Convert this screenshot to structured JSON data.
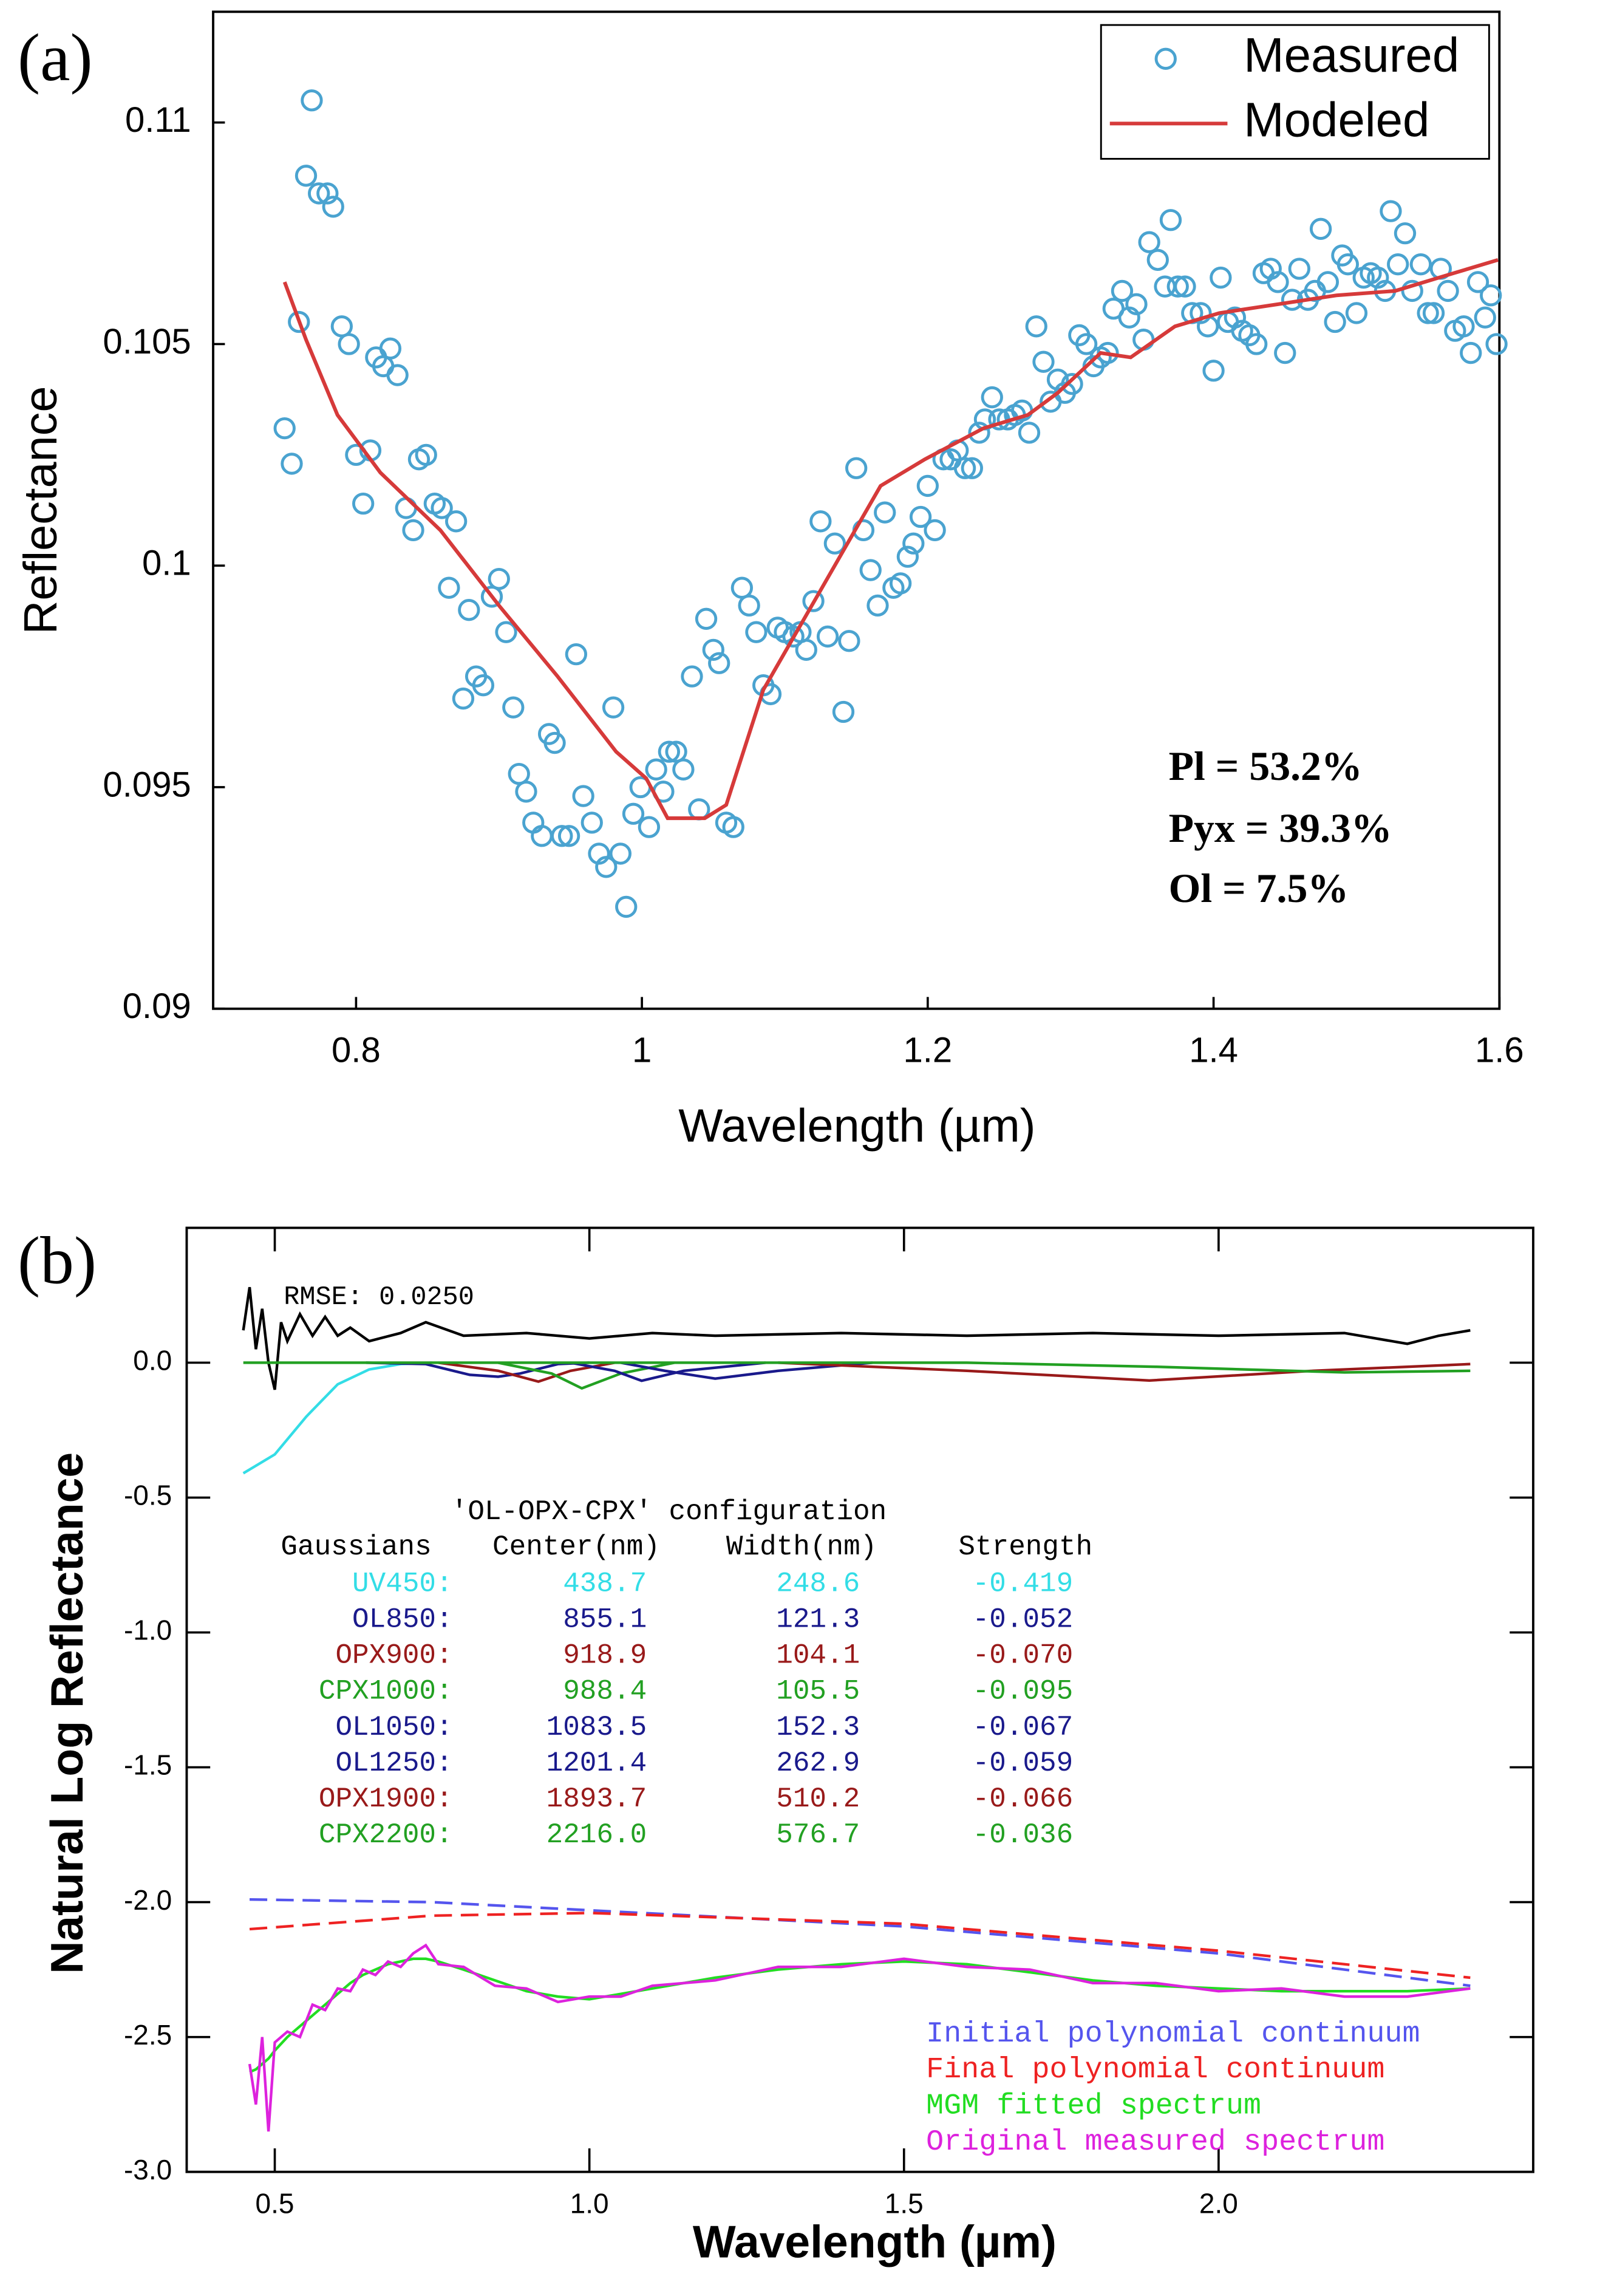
{
  "chart_data": [
    {
      "type": "scatter",
      "panel_label": "(a)",
      "x_label": "Wavelength (µm)",
      "y_label": "Reflectance",
      "annotations": [
        "Pl = 53.2%",
        "Pyx = 39.3%",
        "Ol = 7.5%"
      ],
      "xlim": [
        0.7,
        1.6
      ],
      "ylim": [
        0.09,
        0.1125
      ],
      "xticks": [
        0.8,
        1,
        1.2,
        1.4,
        1.6
      ],
      "yticks": [
        0.09,
        0.095,
        0.1,
        0.105,
        0.11
      ],
      "legend": "upper right",
      "series": [
        {
          "name": "Measured",
          "type": "scatter",
          "color": "#4aa3d0",
          "x": [
            0.75,
            0.755,
            0.76,
            0.765,
            0.769,
            0.774,
            0.78,
            0.784,
            0.79,
            0.795,
            0.8,
            0.805,
            0.81,
            0.814,
            0.819,
            0.824,
            0.829,
            0.835,
            0.84,
            0.844,
            0.849,
            0.855,
            0.86,
            0.865,
            0.87,
            0.875,
            0.879,
            0.884,
            0.889,
            0.895,
            0.9,
            0.905,
            0.91,
            0.914,
            0.919,
            0.924,
            0.93,
            0.935,
            0.939,
            0.944,
            0.949,
            0.954,
            0.959,
            0.965,
            0.97,
            0.975,
            0.98,
            0.985,
            0.989,
            0.994,
            0.999,
            1.005,
            1.01,
            1.015,
            1.019,
            1.024,
            1.029,
            1.035,
            1.04,
            1.045,
            1.05,
            1.054,
            1.059,
            1.064,
            1.07,
            1.075,
            1.08,
            1.085,
            1.09,
            1.095,
            1.1,
            1.106,
            1.111,
            1.115,
            1.12,
            1.125,
            1.13,
            1.135,
            1.141,
            1.145,
            1.15,
            1.155,
            1.16,
            1.165,
            1.17,
            1.176,
            1.181,
            1.186,
            1.19,
            1.195,
            1.2,
            1.205,
            1.211,
            1.216,
            1.221,
            1.226,
            1.231,
            1.236,
            1.24,
            1.245,
            1.25,
            1.256,
            1.261,
            1.266,
            1.271,
            1.276,
            1.281,
            1.286,
            1.291,
            1.296,
            1.301,
            1.306,
            1.311,
            1.316,
            1.321,
            1.326,
            1.33,
            1.336,
            1.341,
            1.346,
            1.351,
            1.355,
            1.361,
            1.366,
            1.37,
            1.375,
            1.38,
            1.385,
            1.391,
            1.396,
            1.4,
            1.405,
            1.41,
            1.415,
            1.42,
            1.425,
            1.43,
            1.435,
            1.44,
            1.445,
            1.45,
            1.455,
            1.46,
            1.466,
            1.471,
            1.475,
            1.48,
            1.485,
            1.49,
            1.494,
            1.5,
            1.505,
            1.51,
            1.515,
            1.52,
            1.524,
            1.529,
            1.534,
            1.539,
            1.545,
            1.55,
            1.554,
            1.559,
            1.564,
            1.569,
            1.575,
            1.58,
            1.585,
            1.59,
            1.594,
            1.598
          ],
          "values": [
            0.1031,
            0.1023,
            0.1055,
            0.1088,
            0.1105,
            0.1084,
            0.1084,
            0.1081,
            0.1054,
            0.105,
            0.1025,
            0.1014,
            0.1026,
            0.1047,
            0.1045,
            0.1049,
            0.1043,
            0.1013,
            0.1008,
            0.1024,
            0.1025,
            0.1014,
            0.1013,
            0.0995,
            0.101,
            0.097,
            0.099,
            0.0975,
            0.0973,
            0.0993,
            0.0997,
            0.0985,
            0.0968,
            0.0953,
            0.0949,
            0.0942,
            0.0939,
            0.0962,
            0.096,
            0.0939,
            0.0939,
            0.098,
            0.0948,
            0.0942,
            0.0935,
            0.0932,
            0.0968,
            0.0935,
            0.0923,
            0.0944,
            0.095,
            0.0941,
            0.0954,
            0.0949,
            0.0958,
            0.0958,
            0.0954,
            0.0975,
            0.0945,
            0.0988,
            0.0981,
            0.0978,
            0.0942,
            0.0941,
            0.0995,
            0.0991,
            0.0985,
            0.0973,
            0.0971,
            0.0986,
            0.0985,
            0.0984,
            0.0985,
            0.0981,
            0.0992,
            0.101,
            0.0984,
            0.1005,
            0.0967,
            0.0983,
            0.1022,
            0.1008,
            0.0999,
            0.0991,
            0.1012,
            0.0995,
            0.0996,
            0.1002,
            0.1005,
            0.1011,
            0.1018,
            0.1008,
            0.1024,
            0.1024,
            0.1026,
            0.1022,
            0.1022,
            0.103,
            0.1033,
            0.1038,
            0.1033,
            0.1033,
            0.1034,
            0.1035,
            0.103,
            0.1054,
            0.1046,
            0.1037,
            0.1042,
            0.1039,
            0.1041,
            0.1052,
            0.105,
            0.1045,
            0.1047,
            0.1048,
            0.1058,
            0.1062,
            0.1056,
            0.1059,
            0.1051,
            0.1073,
            0.1069,
            0.1063,
            0.1078,
            0.1063,
            0.1063,
            0.1057,
            0.1057,
            0.1054,
            0.1044,
            0.1065,
            0.1055,
            0.1056,
            0.1053,
            0.1052,
            0.105,
            0.1066,
            0.1067,
            0.1064,
            0.1048,
            0.106,
            0.1067,
            0.106,
            0.1062,
            0.1076,
            0.1064,
            0.1055,
            0.107,
            0.1068,
            0.1057,
            0.1065,
            0.1066,
            0.1065,
            0.1062,
            0.108,
            0.1068,
            0.1075,
            0.1062,
            0.1068,
            0.1057,
            0.1057,
            0.1067,
            0.1062,
            0.1053,
            0.1054,
            0.1048,
            0.1064,
            0.1056,
            0.1061,
            0.105
          ]
        },
        {
          "name": "Modeled",
          "type": "line",
          "color": "#d63a3a",
          "x": [
            0.75,
            0.765,
            0.787,
            0.817,
            0.859,
            0.9,
            0.941,
            0.982,
            1.003,
            1.018,
            1.044,
            1.059,
            1.085,
            1.126,
            1.167,
            1.198,
            1.239,
            1.27,
            1.291,
            1.321,
            1.342,
            1.373,
            1.404,
            1.445,
            1.486,
            1.527,
            1.568,
            1.599
          ],
          "values": [
            0.1064,
            0.1051,
            0.1034,
            0.1021,
            0.1008,
            0.0991,
            0.0975,
            0.0958,
            0.0952,
            0.0943,
            0.0943,
            0.0946,
            0.0972,
            0.0995,
            0.1018,
            0.1024,
            0.1031,
            0.1034,
            0.1039,
            0.1048,
            0.1047,
            0.1054,
            0.1057,
            0.1059,
            0.1061,
            0.1062,
            0.1066,
            0.1069
          ]
        }
      ]
    },
    {
      "type": "line",
      "panel_label": "(b)",
      "x_label": "Wavelength (µm)",
      "y_label": "Natural Log Reflectance",
      "annotation": "RMSE: 0.0250",
      "xlim": [
        0.36,
        2.5
      ],
      "ylim": [
        -3,
        0.5
      ],
      "xticks": [
        0.5,
        {
          "value": 1,
          "label": "1.0"
        },
        1.5,
        {
          "value": 2,
          "label": "2.0"
        }
      ],
      "yticks": [
        {
          "value": 0,
          "label": "0.0"
        },
        -0.5,
        {
          "value": -1,
          "label": "-1.0"
        },
        -1.5,
        {
          "value": -2,
          "label": "-2.0"
        },
        -2.5,
        {
          "value": -3,
          "label": "-3.0"
        }
      ],
      "legend": "lower right",
      "table": {
        "title": "'OL-OPX-CPX' configuration",
        "header": [
          "Gaussians",
          "Center(nm)",
          "Width(nm)",
          "Strength"
        ],
        "rows": [
          [
            "UV450:",
            "438.7",
            "248.6",
            "-0.419"
          ],
          [
            "OL850:",
            "855.1",
            "121.3",
            "-0.052"
          ],
          [
            "OPX900:",
            "918.9",
            "104.1",
            "-0.070"
          ],
          [
            "CPX1000:",
            "988.4",
            "105.5",
            "-0.095"
          ],
          [
            "OL1050:",
            "1083.5",
            "152.3",
            "-0.067"
          ],
          [
            "OL1250:",
            "1201.4",
            "262.9",
            "-0.059"
          ],
          [
            "OPX1900:",
            "1893.7",
            "510.2",
            "-0.066"
          ],
          [
            "CPX2200:",
            "2216.0",
            "576.7",
            "-0.036"
          ]
        ],
        "row_colors": [
          "#33dde6",
          "#1a1a8c",
          "#991a1a",
          "#22a022",
          "#1a1a8c",
          "#1a1a8c",
          "#991a1a",
          "#22a022"
        ]
      },
      "series": [
        {
          "color": "#000000",
          "x": [
            0.45,
            0.46,
            0.47,
            0.48,
            0.49,
            0.5,
            0.51,
            0.52,
            0.54,
            0.56,
            0.58,
            0.6,
            0.62,
            0.65,
            0.7,
            0.74,
            0.8,
            0.9,
            1.0,
            1.1,
            1.2,
            1.4,
            1.6,
            1.8,
            2.0,
            2.2,
            2.3,
            2.35,
            2.4
          ],
          "values": [
            0.12,
            0.28,
            0.05,
            0.2,
            0.0,
            -0.1,
            0.15,
            0.08,
            0.18,
            0.1,
            0.17,
            0.1,
            0.13,
            0.08,
            0.11,
            0.15,
            0.1,
            0.11,
            0.09,
            0.11,
            0.1,
            0.11,
            0.1,
            0.11,
            0.1,
            0.11,
            0.07,
            0.1,
            0.12
          ]
        },
        {
          "color": "#33dde6",
          "x": [
            0.45,
            0.5,
            0.55,
            0.6,
            0.65,
            0.7,
            0.75
          ],
          "values": [
            -0.41,
            -0.34,
            -0.2,
            -0.08,
            -0.025,
            -0.005,
            0
          ]
        },
        {
          "color": "#1a1a8c",
          "x": [
            0.645,
            0.74,
            0.81,
            0.855,
            0.89,
            0.95,
            1.0
          ],
          "values": [
            0,
            -0.005,
            -0.045,
            -0.052,
            -0.04,
            -0.005,
            0
          ]
        },
        {
          "color": "#991a1a",
          "x": [
            0.76,
            0.855,
            0.919,
            0.97,
            1.04
          ],
          "values": [
            0,
            -0.03,
            -0.07,
            -0.03,
            0
          ]
        },
        {
          "color": "#22a022",
          "x": [
            0.855,
            0.94,
            0.988,
            1.05,
            1.135
          ],
          "values": [
            0,
            -0.04,
            -0.095,
            -0.04,
            0
          ]
        },
        {
          "color": "#1a1a8c",
          "x": [
            0.97,
            1.04,
            1.083,
            1.15,
            1.28
          ],
          "values": [
            0,
            -0.03,
            -0.067,
            -0.03,
            0
          ]
        },
        {
          "color": "#1a1a8c",
          "x": [
            1.05,
            1.12,
            1.2,
            1.3,
            1.45
          ],
          "values": [
            0,
            -0.03,
            -0.059,
            -0.03,
            0
          ]
        },
        {
          "color": "#991a1a",
          "x": [
            1.3,
            1.6,
            1.89,
            2.15,
            2.4
          ],
          "values": [
            0,
            -0.03,
            -0.066,
            -0.03,
            -0.005
          ]
        },
        {
          "color": "#22a022",
          "x": [
            0.45,
            1.6,
            1.9,
            2.2,
            2.4
          ],
          "values": [
            0,
            0,
            -0.015,
            -0.036,
            -0.03
          ]
        },
        {
          "name": "Initial polynomial continuum",
          "color": "#5555ee",
          "dashed": true,
          "x": [
            0.46,
            0.75,
            1.0,
            1.5,
            2.0,
            2.4
          ],
          "values": [
            -1.99,
            -2.0,
            -2.03,
            -2.09,
            -2.19,
            -2.31
          ]
        },
        {
          "name": "Final polynomial continuum",
          "color": "#ee2222",
          "dashed": true,
          "x": [
            0.46,
            0.75,
            1.0,
            1.5,
            2.0,
            2.4
          ],
          "values": [
            -2.1,
            -2.05,
            -2.04,
            -2.08,
            -2.18,
            -2.28
          ]
        },
        {
          "name": "MGM fitted spectrum",
          "color": "#22dd22",
          "x": [
            0.46,
            0.47,
            0.48,
            0.49,
            0.5,
            0.52,
            0.54,
            0.56,
            0.58,
            0.6,
            0.62,
            0.64,
            0.66,
            0.68,
            0.7,
            0.72,
            0.74,
            0.76,
            0.8,
            0.85,
            0.9,
            0.95,
            1.0,
            1.05,
            1.1,
            1.2,
            1.3,
            1.4,
            1.5,
            1.6,
            1.7,
            1.8,
            1.9,
            2.0,
            2.1,
            2.2,
            2.3,
            2.4
          ],
          "values": [
            -2.63,
            -2.62,
            -2.6,
            -2.58,
            -2.55,
            -2.5,
            -2.46,
            -2.42,
            -2.38,
            -2.34,
            -2.3,
            -2.27,
            -2.25,
            -2.23,
            -2.22,
            -2.21,
            -2.21,
            -2.22,
            -2.25,
            -2.29,
            -2.33,
            -2.35,
            -2.36,
            -2.34,
            -2.32,
            -2.28,
            -2.25,
            -2.23,
            -2.22,
            -2.23,
            -2.26,
            -2.29,
            -2.31,
            -2.32,
            -2.33,
            -2.33,
            -2.33,
            -2.32
          ]
        },
        {
          "name": "Original measured spectrum",
          "color": "#dd22dd",
          "x": [
            0.46,
            0.47,
            0.48,
            0.49,
            0.5,
            0.52,
            0.54,
            0.56,
            0.58,
            0.6,
            0.62,
            0.64,
            0.66,
            0.68,
            0.7,
            0.72,
            0.74,
            0.76,
            0.8,
            0.85,
            0.9,
            0.95,
            1.0,
            1.05,
            1.1,
            1.2,
            1.3,
            1.4,
            1.5,
            1.6,
            1.7,
            1.8,
            1.9,
            2.0,
            2.1,
            2.2,
            2.3,
            2.4
          ],
          "values": [
            -2.6,
            -2.75,
            -2.5,
            -2.85,
            -2.52,
            -2.48,
            -2.5,
            -2.38,
            -2.4,
            -2.32,
            -2.33,
            -2.25,
            -2.27,
            -2.22,
            -2.24,
            -2.19,
            -2.16,
            -2.23,
            -2.24,
            -2.31,
            -2.32,
            -2.37,
            -2.35,
            -2.35,
            -2.31,
            -2.29,
            -2.24,
            -2.24,
            -2.21,
            -2.24,
            -2.25,
            -2.3,
            -2.3,
            -2.33,
            -2.32,
            -2.35,
            -2.35,
            -2.32
          ]
        }
      ]
    }
  ]
}
